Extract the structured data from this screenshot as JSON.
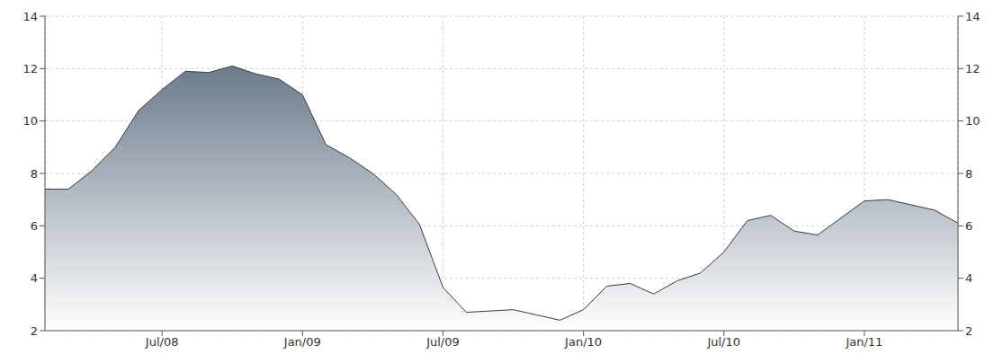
{
  "chart_data": {
    "type": "area",
    "categories": [
      null,
      null,
      null,
      null,
      null,
      "Jul/08",
      null,
      null,
      null,
      null,
      null,
      "Jan/09",
      null,
      null,
      null,
      null,
      null,
      "Jul/09",
      null,
      null,
      null,
      null,
      null,
      "Jan/10",
      null,
      null,
      null,
      null,
      null,
      "Jul/10",
      null,
      null,
      null,
      null,
      null,
      "Jan/11",
      null,
      null,
      null,
      null
    ],
    "values": [
      7.4,
      7.4,
      8.1,
      9.0,
      10.4,
      11.2,
      11.9,
      11.85,
      12.1,
      11.8,
      11.6,
      11.0,
      9.1,
      8.6,
      8.0,
      7.2,
      6.05,
      3.65,
      2.7,
      2.75,
      2.8,
      2.6,
      2.4,
      2.8,
      3.7,
      3.8,
      3.4,
      3.9,
      4.2,
      5.0,
      6.2,
      6.4,
      5.8,
      5.65,
      6.3,
      6.95,
      7.0,
      6.8,
      6.6,
      6.1
    ],
    "color": "#6b7b8c",
    "ylim": [
      2,
      14
    ],
    "yticks": [
      2,
      4,
      6,
      8,
      10,
      12,
      14
    ],
    "y2lim": [
      2,
      14
    ],
    "y2ticks": [
      2,
      4,
      6,
      8,
      10,
      12,
      14
    ],
    "grid": true
  }
}
